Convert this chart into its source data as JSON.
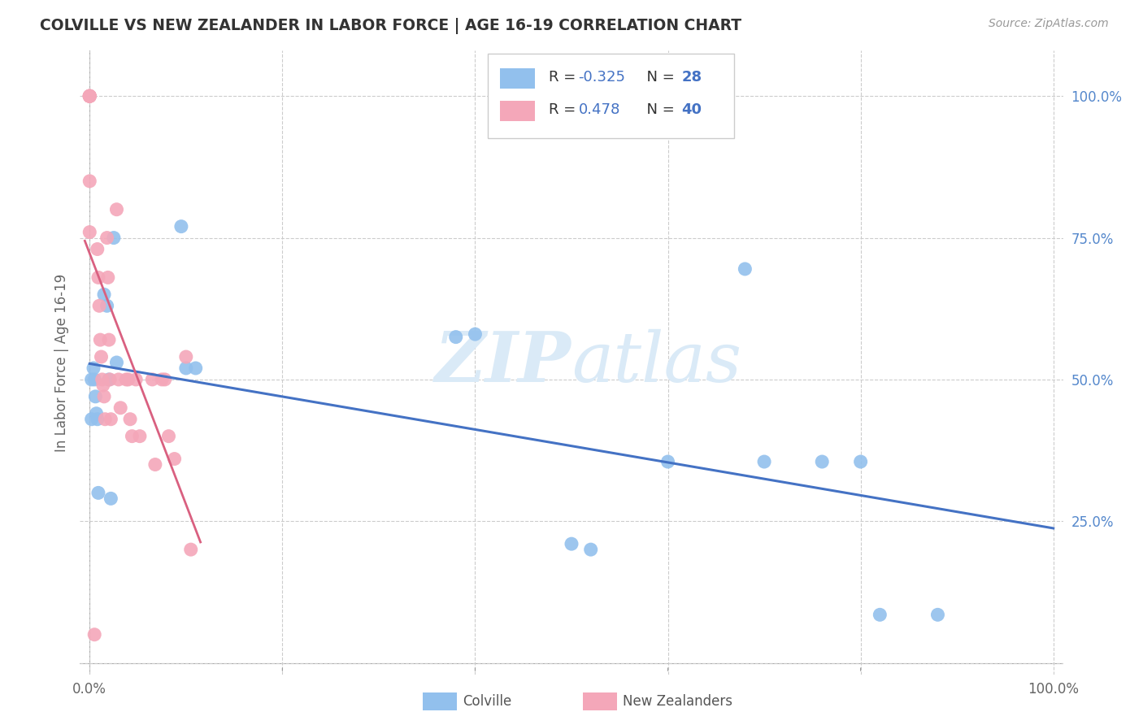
{
  "title": "COLVILLE VS NEW ZEALANDER IN LABOR FORCE | AGE 16-19 CORRELATION CHART",
  "source": "Source: ZipAtlas.com",
  "ylabel": "In Labor Force | Age 16-19",
  "y_tick_vals": [
    0.0,
    0.25,
    0.5,
    0.75,
    1.0
  ],
  "y_tick_labels": [
    "",
    "25.0%",
    "50.0%",
    "75.0%",
    "100.0%"
  ],
  "x_tick_vals": [
    0.0,
    0.2,
    0.4,
    0.6,
    0.8,
    1.0
  ],
  "legend_blue_r": "-0.325",
  "legend_blue_n": "28",
  "legend_pink_r": "0.478",
  "legend_pink_n": "40",
  "blue_color": "#92C0ED",
  "pink_color": "#F4A7B9",
  "blue_line_color": "#4472C4",
  "pink_line_color": "#D96080",
  "watermark_color": "#DAEAF7",
  "blue_points_x": [
    0.002,
    0.002,
    0.004,
    0.005,
    0.006,
    0.007,
    0.008,
    0.009,
    0.015,
    0.018,
    0.02,
    0.022,
    0.025,
    0.028,
    0.095,
    0.1,
    0.11,
    0.38,
    0.4,
    0.5,
    0.52,
    0.6,
    0.68,
    0.7,
    0.76,
    0.8,
    0.82,
    0.88
  ],
  "blue_points_y": [
    0.5,
    0.43,
    0.52,
    0.5,
    0.47,
    0.44,
    0.43,
    0.3,
    0.65,
    0.63,
    0.5,
    0.29,
    0.75,
    0.53,
    0.77,
    0.52,
    0.52,
    0.575,
    0.58,
    0.21,
    0.2,
    0.355,
    0.695,
    0.355,
    0.355,
    0.355,
    0.085,
    0.085
  ],
  "pink_points_x": [
    0.0,
    0.0,
    0.0,
    0.0,
    0.0,
    0.0,
    0.0,
    0.0,
    0.008,
    0.009,
    0.01,
    0.011,
    0.012,
    0.013,
    0.014,
    0.015,
    0.016,
    0.018,
    0.019,
    0.02,
    0.021,
    0.022,
    0.03,
    0.032,
    0.038,
    0.04,
    0.042,
    0.044,
    0.048,
    0.052,
    0.065,
    0.068,
    0.075,
    0.078,
    0.082,
    0.088,
    0.1,
    0.105,
    0.028,
    0.005
  ],
  "pink_points_y": [
    1.0,
    1.0,
    1.0,
    1.0,
    1.0,
    1.0,
    0.85,
    0.76,
    0.73,
    0.68,
    0.63,
    0.57,
    0.54,
    0.5,
    0.49,
    0.47,
    0.43,
    0.75,
    0.68,
    0.57,
    0.5,
    0.43,
    0.5,
    0.45,
    0.5,
    0.5,
    0.43,
    0.4,
    0.5,
    0.4,
    0.5,
    0.35,
    0.5,
    0.5,
    0.4,
    0.36,
    0.54,
    0.2,
    0.8,
    0.05
  ],
  "xlim": [
    -0.01,
    1.01
  ],
  "ylim": [
    -0.02,
    1.08
  ]
}
